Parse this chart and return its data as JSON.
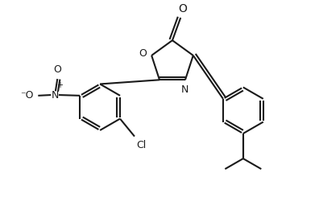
{
  "bg": "#ffffff",
  "lc": "#1a1a1a",
  "lw": 1.5,
  "fs": 9.0,
  "figsize": [
    3.96,
    2.71
  ],
  "dpi": 100,
  "xlim": [
    0,
    9.9
  ],
  "ylim": [
    0,
    6.775
  ]
}
